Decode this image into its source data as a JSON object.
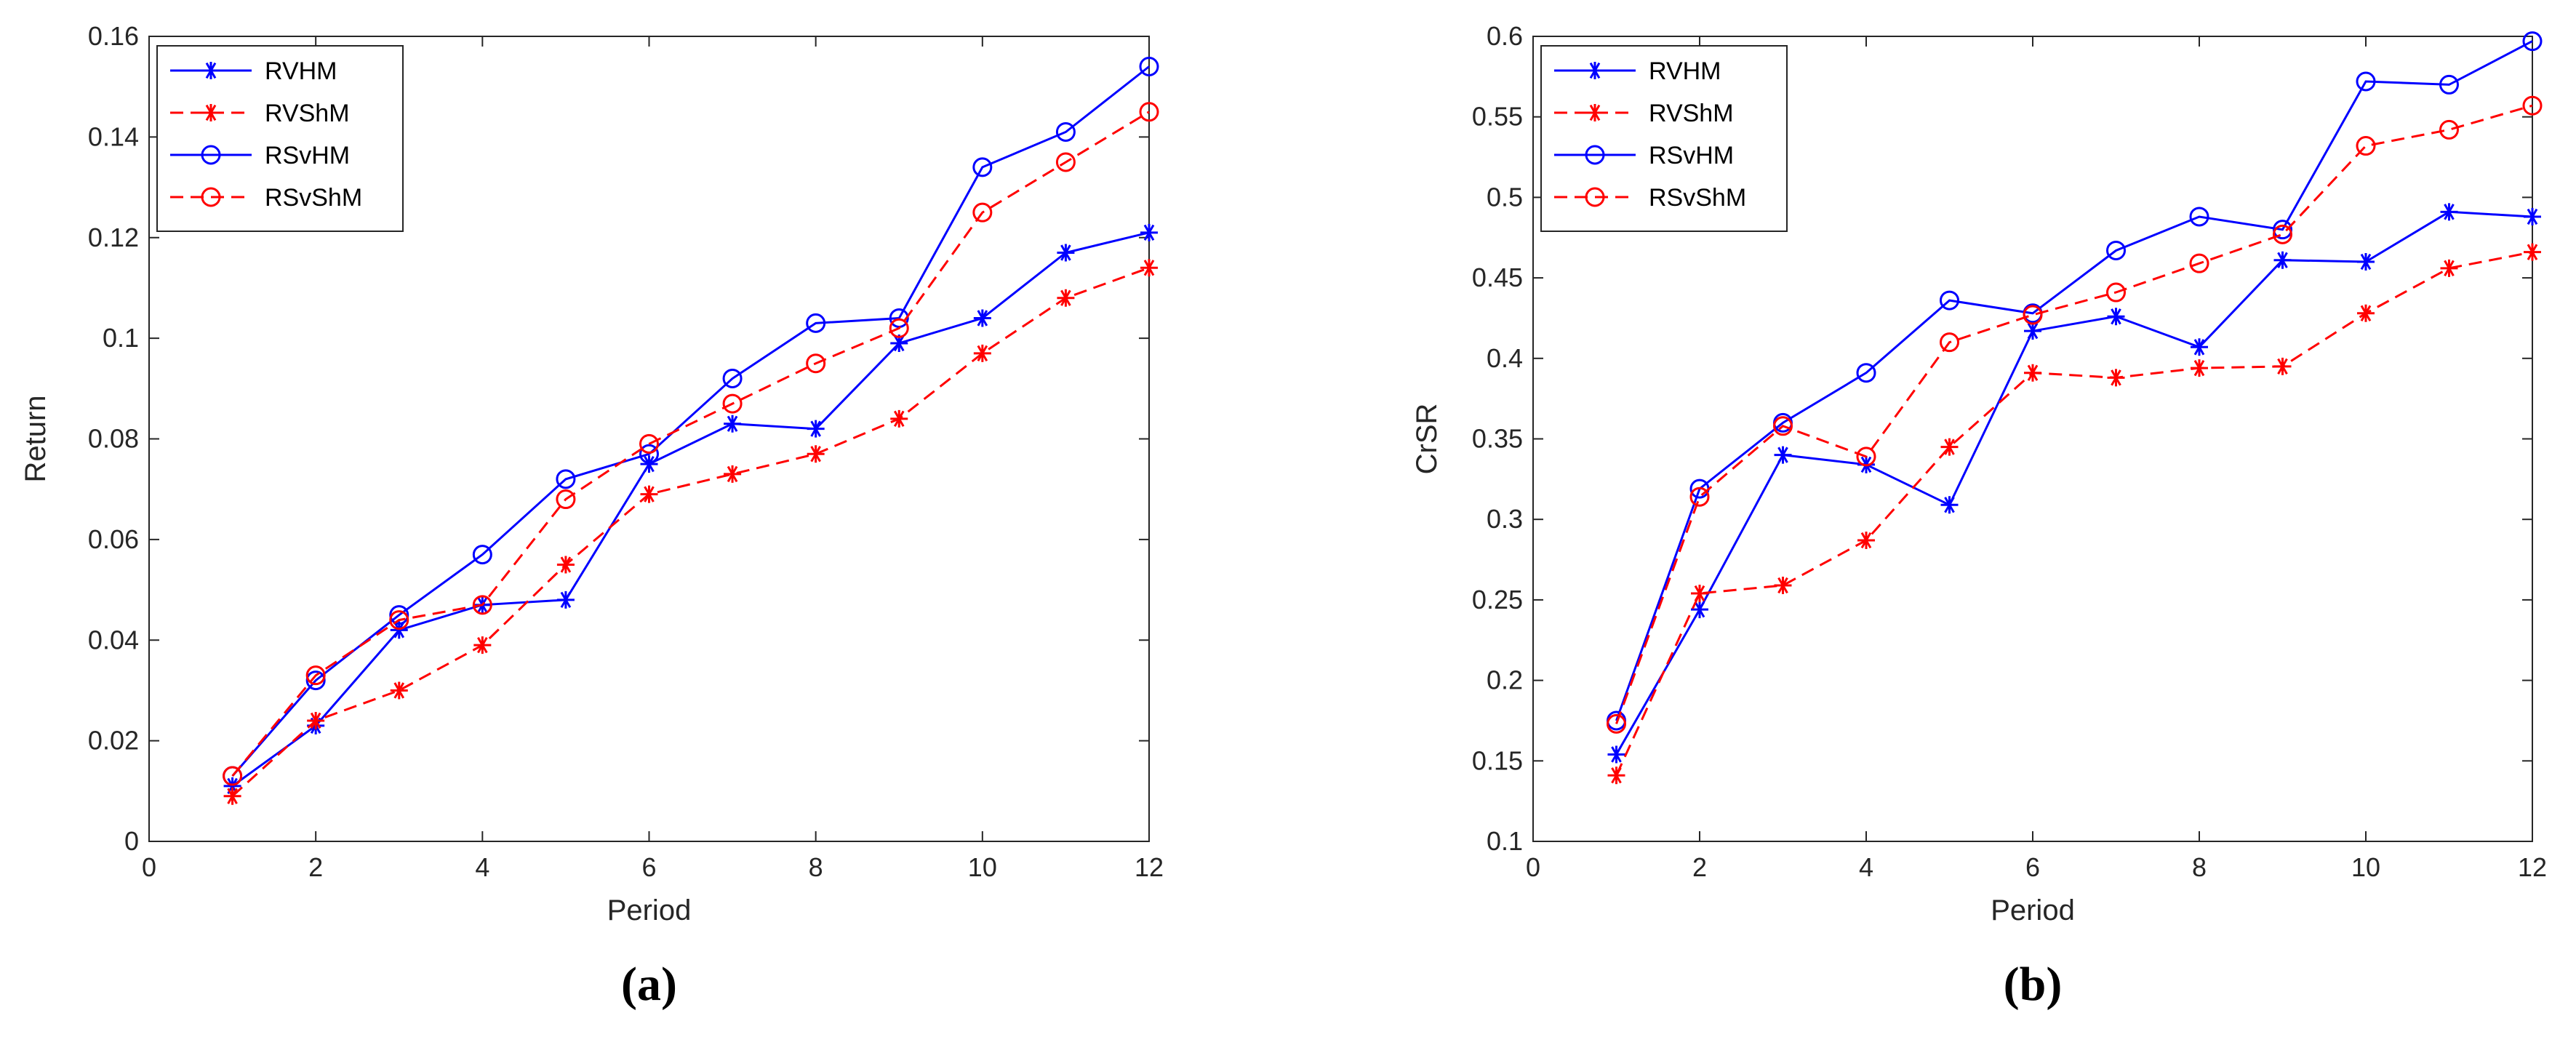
{
  "colors": {
    "blue": "#0000ff",
    "red": "#ff0000",
    "axis": "#262626"
  },
  "chart_data": [
    {
      "type": "line",
      "panel": "a",
      "panel_label": "(a)",
      "xlabel": "Period",
      "ylabel": "Return",
      "xlim": [
        0,
        12
      ],
      "ylim": [
        0,
        0.16
      ],
      "xticks": [
        0,
        2,
        4,
        6,
        8,
        10,
        12
      ],
      "xtick_labels": [
        "0",
        "2",
        "4",
        "6",
        "8",
        "10",
        "12"
      ],
      "yticks": [
        0,
        0.02,
        0.04,
        0.06,
        0.08,
        0.1,
        0.12,
        0.14,
        0.16
      ],
      "ytick_labels": [
        "0",
        "0.02",
        "0.04",
        "0.06",
        "0.08",
        "0.1",
        "0.12",
        "0.14",
        "0.16"
      ],
      "legend_position": "top-left",
      "x": [
        1,
        2,
        3,
        4,
        5,
        6,
        7,
        8,
        9,
        10,
        11,
        12
      ],
      "series": [
        {
          "name": "RVHM",
          "color": "#0000ff",
          "dash": "solid",
          "marker": "asterisk",
          "values": [
            0.011,
            0.023,
            0.042,
            0.047,
            0.048,
            0.075,
            0.083,
            0.082,
            0.099,
            0.104,
            0.117,
            0.121
          ]
        },
        {
          "name": "RVShM",
          "color": "#ff0000",
          "dash": "dashed",
          "marker": "asterisk",
          "values": [
            0.009,
            0.024,
            0.03,
            0.039,
            0.055,
            0.069,
            0.073,
            0.077,
            0.084,
            0.097,
            0.108,
            0.114
          ]
        },
        {
          "name": "RSvHM",
          "color": "#0000ff",
          "dash": "solid",
          "marker": "circle",
          "values": [
            0.013,
            0.032,
            0.045,
            0.057,
            0.072,
            0.077,
            0.092,
            0.103,
            0.104,
            0.134,
            0.141,
            0.154
          ]
        },
        {
          "name": "RSvShM",
          "color": "#ff0000",
          "dash": "dashed",
          "marker": "circle",
          "values": [
            0.013,
            0.033,
            0.044,
            0.047,
            0.068,
            0.079,
            0.087,
            0.095,
            0.102,
            0.125,
            0.135,
            0.145
          ]
        }
      ]
    },
    {
      "type": "line",
      "panel": "b",
      "panel_label": "(b)",
      "xlabel": "Period",
      "ylabel": "CrSR",
      "xlim": [
        0,
        12
      ],
      "ylim": [
        0.1,
        0.6
      ],
      "xticks": [
        0,
        2,
        4,
        6,
        8,
        10,
        12
      ],
      "xtick_labels": [
        "0",
        "2",
        "4",
        "6",
        "8",
        "10",
        "12"
      ],
      "yticks": [
        0.1,
        0.15,
        0.2,
        0.25,
        0.3,
        0.35,
        0.4,
        0.45,
        0.5,
        0.55,
        0.6
      ],
      "ytick_labels": [
        "0.1",
        "0.15",
        "0.2",
        "0.25",
        "0.3",
        "0.35",
        "0.4",
        "0.45",
        "0.5",
        "0.55",
        "0.6"
      ],
      "legend_position": "top-left",
      "x": [
        1,
        2,
        3,
        4,
        5,
        6,
        7,
        8,
        9,
        10,
        11,
        12
      ],
      "series": [
        {
          "name": "RVHM",
          "color": "#0000ff",
          "dash": "solid",
          "marker": "asterisk",
          "values": [
            0.154,
            0.244,
            0.34,
            0.334,
            0.309,
            0.417,
            0.426,
            0.407,
            0.461,
            0.46,
            0.491,
            0.488
          ]
        },
        {
          "name": "RVShM",
          "color": "#ff0000",
          "dash": "dashed",
          "marker": "asterisk",
          "values": [
            0.141,
            0.254,
            0.259,
            0.287,
            0.345,
            0.391,
            0.388,
            0.394,
            0.395,
            0.428,
            0.456,
            0.466
          ]
        },
        {
          "name": "RSvHM",
          "color": "#0000ff",
          "dash": "solid",
          "marker": "circle",
          "values": [
            0.175,
            0.319,
            0.36,
            0.391,
            0.436,
            0.428,
            0.467,
            0.488,
            0.48,
            0.572,
            0.57,
            0.597
          ]
        },
        {
          "name": "RSvShM",
          "color": "#ff0000",
          "dash": "dashed",
          "marker": "circle",
          "values": [
            0.173,
            0.314,
            0.358,
            0.339,
            0.41,
            0.427,
            0.441,
            0.459,
            0.477,
            0.532,
            0.542,
            0.557
          ]
        }
      ]
    }
  ]
}
